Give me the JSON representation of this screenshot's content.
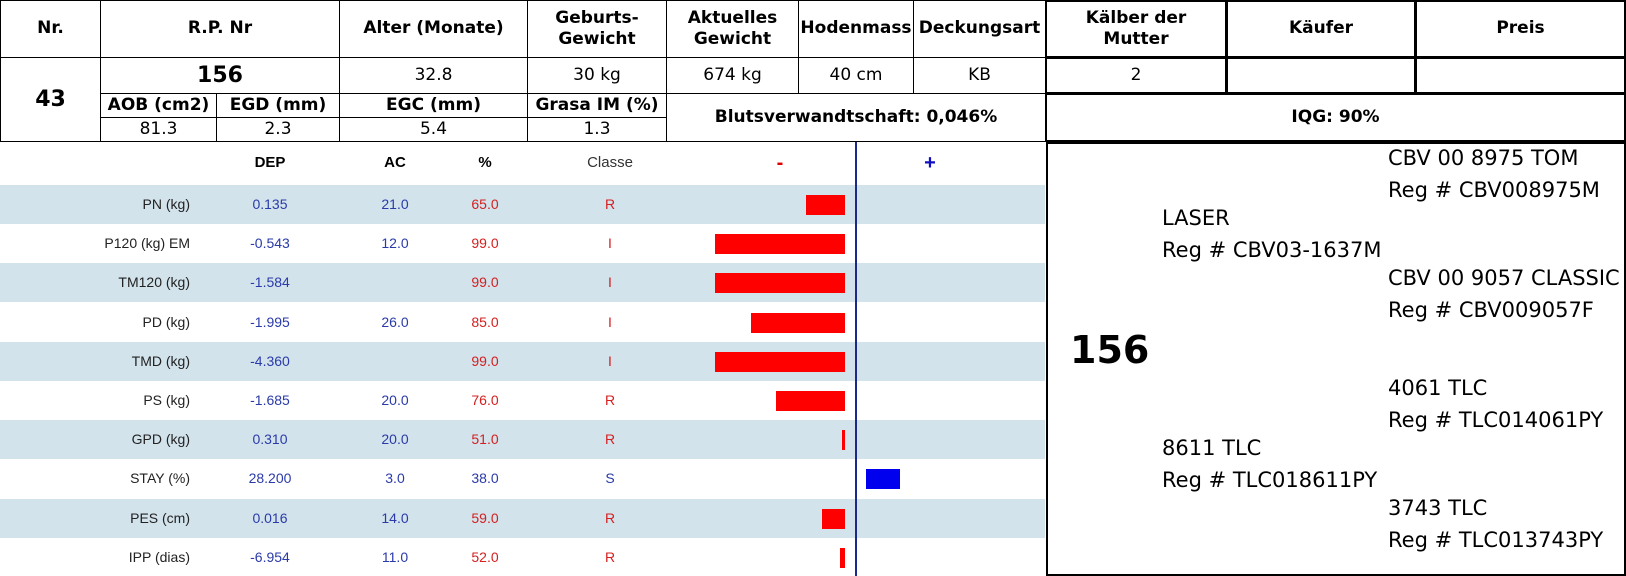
{
  "header": {
    "nr_label": "Nr.",
    "rp_label": "R.P. Nr",
    "alter_label": "Alter (Monate)",
    "geburts_label_1": "Geburts-",
    "geburts_label_2": "Gewicht",
    "aktuelles_label_1": "Aktuelles",
    "aktuelles_label_2": "Gewicht",
    "hodenmass_label": "Hodenmass",
    "deckungsart_label": "Deckungsart",
    "kaelber_label_1": "Kälber der",
    "kaelber_label_2": "Mutter",
    "kaeufer_label": "Käufer",
    "preis_label": "Preis"
  },
  "animal": {
    "nr": "43",
    "rp": "156",
    "alter": "32.8",
    "geburtsgewicht": "30 kg",
    "aktuelles_gewicht": "674 kg",
    "hodenmass": "40 cm",
    "deckungsart": "KB",
    "kaelber": "2",
    "kaeufer": "",
    "preis": ""
  },
  "carcass": {
    "aob_label": "AOB (cm2)",
    "egd_label": "EGD (mm)",
    "egc_label": "EGC (mm)",
    "grasa_label": "Grasa IM (%)",
    "aob": "81.3",
    "egd": "2.3",
    "egc": "5.4",
    "grasa": "1.3",
    "blutsverwandtschaft": "Blutsverwandtschaft: 0,046%",
    "iqg": "IQG: 90%"
  },
  "epd_columns": {
    "dep": "DEP",
    "ac": "AC",
    "pct": "%",
    "classe": "Classe",
    "minus": "-",
    "plus": "+"
  },
  "colors": {
    "negative_bar": "#ff0000",
    "positive_bar": "#0000ee",
    "row_shade": "#d2e3ec",
    "class_red": "#d42020",
    "class_blue": "#2a3aa8"
  },
  "chart_data": {
    "type": "bar",
    "orientation": "horizontal",
    "categories": [
      "PN (kg)",
      "P120 (kg) EM",
      "TM120 (kg)",
      "PD (kg)",
      "TMD (kg)",
      "PS (kg)",
      "GPD (kg)",
      "STAY (%)",
      "PES (cm)",
      "IPP (dias)"
    ],
    "rows": [
      {
        "label": "PN (kg)",
        "dep": "0.135",
        "ac": "21.0",
        "pct": "65.0",
        "classe": "R",
        "bar": -0.3
      },
      {
        "label": "P120 (kg) EM",
        "dep": "-0.543",
        "ac": "12.0",
        "pct": "99.0",
        "classe": "I",
        "bar": -1.0
      },
      {
        "label": "TM120 (kg)",
        "dep": "-1.584",
        "ac": "",
        "pct": "99.0",
        "classe": "I",
        "bar": -1.0
      },
      {
        "label": "PD (kg)",
        "dep": "-1.995",
        "ac": "26.0",
        "pct": "85.0",
        "classe": "I",
        "bar": -0.72
      },
      {
        "label": "TMD (kg)",
        "dep": "-4.360",
        "ac": "",
        "pct": "99.0",
        "classe": "I",
        "bar": -1.0
      },
      {
        "label": "PS (kg)",
        "dep": "-1.685",
        "ac": "20.0",
        "pct": "76.0",
        "classe": "R",
        "bar": -0.53
      },
      {
        "label": "GPD (kg)",
        "dep": "0.310",
        "ac": "20.0",
        "pct": "51.0",
        "classe": "R",
        "bar": -0.02
      },
      {
        "label": "STAY (%)",
        "dep": "28.200",
        "ac": "3.0",
        "pct": "38.0",
        "classe": "S",
        "bar": 0.26
      },
      {
        "label": "PES (cm)",
        "dep": "0.016",
        "ac": "14.0",
        "pct": "59.0",
        "classe": "R",
        "bar": -0.18
      },
      {
        "label": "IPP (dias)",
        "dep": "-6.954",
        "ac": "11.0",
        "pct": "52.0",
        "classe": "R",
        "bar": -0.04
      }
    ]
  },
  "pedigree": {
    "animal": "156",
    "sire": "LASER",
    "sire_reg": "Reg # CBV03-1637M",
    "sire_sire": "CBV 00 8975 TOM",
    "sire_sire_reg": "Reg # CBV008975M",
    "sire_dam": "CBV 00 9057 CLASSIC",
    "sire_dam_reg": "Reg # CBV009057F",
    "dam": "8611 TLC",
    "dam_reg": "Reg # TLC018611PY",
    "dam_sire": "4061 TLC",
    "dam_sire_reg": "Reg # TLC014061PY",
    "dam_dam": "3743 TLC",
    "dam_dam_reg": "Reg # TLC013743PY"
  }
}
